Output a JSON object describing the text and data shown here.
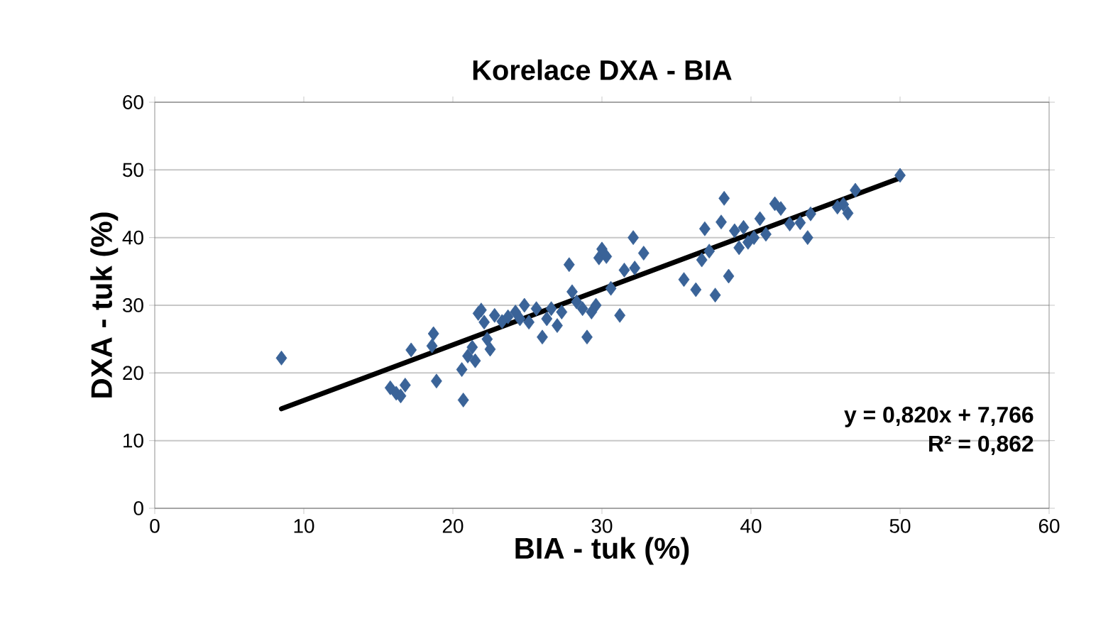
{
  "chart_data": {
    "type": "scatter",
    "title": "Korelace DXA - BIA",
    "xlabel": "BIA - tuk (%)",
    "ylabel": "DXA - tuk (%)",
    "xlim": [
      0,
      60
    ],
    "xticks": [
      0,
      10,
      20,
      30,
      40,
      50,
      60
    ],
    "ylim": [
      0,
      60
    ],
    "yticks": [
      0,
      10,
      20,
      30,
      40,
      50,
      60
    ],
    "grid": "y",
    "annotations": [
      "y = 0,820x + 7,766",
      "R² = 0,862"
    ],
    "series": [
      {
        "color": "#3a6398",
        "marker": "diamond",
        "x": [
          8.5,
          15.8,
          16.2,
          16.5,
          16.8,
          17.2,
          18.7,
          18.6,
          18.9,
          20.7,
          20.6,
          21.0,
          21.3,
          21.5,
          21.7,
          21.9,
          22.1,
          22.3,
          22.5,
          22.8,
          23.3,
          23.7,
          24.2,
          24.5,
          24.8,
          25.1,
          25.6,
          26.0,
          26.3,
          26.6,
          27.0,
          27.3,
          27.8,
          28.0,
          28.3,
          28.7,
          29.0,
          29.3,
          29.6,
          29.8,
          30.0,
          30.3,
          30.6,
          31.2,
          31.5,
          32.1,
          32.2,
          32.8,
          35.5,
          36.3,
          36.7,
          36.9,
          37.2,
          37.6,
          38.0,
          38.2,
          38.5,
          38.9,
          39.2,
          39.5,
          39.8,
          40.2,
          40.6,
          41.0,
          41.6,
          42.0,
          42.6,
          43.3,
          43.8,
          44.0,
          45.8,
          46.2,
          46.5,
          47.0,
          50.0
        ],
        "values": [
          22.2,
          17.8,
          17.0,
          16.6,
          18.2,
          23.4,
          25.8,
          24.0,
          18.8,
          16.0,
          20.5,
          22.5,
          23.8,
          21.8,
          28.8,
          29.3,
          27.5,
          25.0,
          23.5,
          28.5,
          27.6,
          28.3,
          29.0,
          28.0,
          30.0,
          27.5,
          29.5,
          25.3,
          28.0,
          29.5,
          27.0,
          29.0,
          36.0,
          32.0,
          30.5,
          29.5,
          25.3,
          29.0,
          30.0,
          37.0,
          38.3,
          37.2,
          32.5,
          28.5,
          35.2,
          40.0,
          35.5,
          37.7,
          33.8,
          32.3,
          36.7,
          41.3,
          38.0,
          31.5,
          42.3,
          45.8,
          34.3,
          41.0,
          38.5,
          41.5,
          39.3,
          40.0,
          42.8,
          40.5,
          45.0,
          44.3,
          42.0,
          42.2,
          40.0,
          43.5,
          44.5,
          44.9,
          43.6,
          47.0,
          49.2
        ]
      },
      {
        "type": "line",
        "color": "#000000",
        "x": [
          8.5,
          50
        ],
        "values": [
          14.7,
          48.8
        ]
      }
    ]
  }
}
